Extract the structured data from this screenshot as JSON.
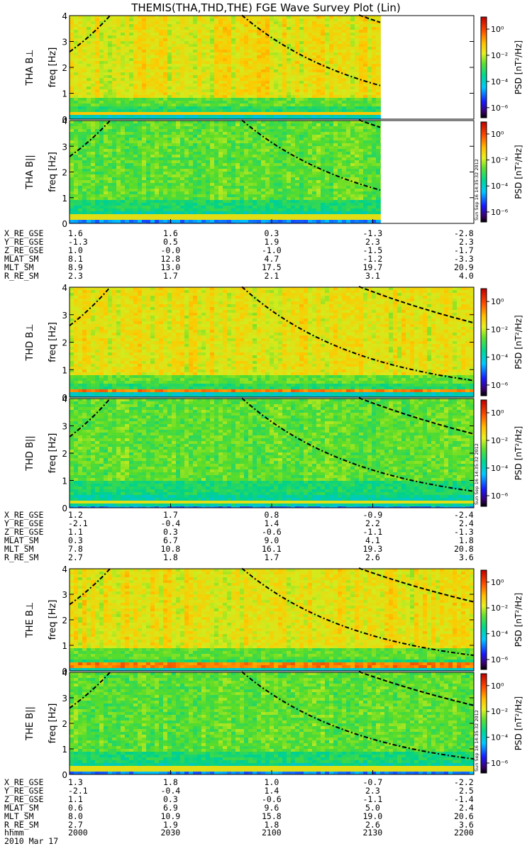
{
  "title": "THEMIS(THA,THD,THE) FGE Wave Survey Plot (Lin)",
  "colorbar": {
    "label": "PSD [nT²/Hz]",
    "ticks": [
      "10⁰",
      "10⁻²",
      "10⁻⁴",
      "10⁻⁶"
    ]
  },
  "timestamp_text": "Sun Sep 16 14:35:32 2012",
  "chart_data": {
    "type": "heatmap",
    "x_label": "hhmm",
    "x_ticks": [
      "2000",
      "2030",
      "2100",
      "2130",
      "2200"
    ],
    "x_range": [
      "2000",
      "2200"
    ],
    "date": "2010 Mar 17",
    "y_ticks": [
      "0",
      "1",
      "2",
      "3",
      "4"
    ],
    "y_range": [
      0,
      4
    ],
    "panels": [
      {
        "probe": "THA",
        "component": "B⊥",
        "ylabel": "THA B⊥",
        "unit_label": "freq [Hz]",
        "show_timestamp": false,
        "data_end_fraction": 0.77
      },
      {
        "probe": "THA",
        "component": "B||",
        "ylabel": "THA B||",
        "unit_label": "freq [Hz]",
        "show_timestamp": true,
        "data_end_fraction": 0.77
      },
      {
        "probe": "THD",
        "component": "B⊥",
        "ylabel": "THD B⊥",
        "unit_label": "freq [Hz]",
        "show_timestamp": false,
        "data_end_fraction": 1.0
      },
      {
        "probe": "THD",
        "component": "B||",
        "ylabel": "THD B||",
        "unit_label": "freq [Hz]",
        "show_timestamp": true,
        "data_end_fraction": 1.0
      },
      {
        "probe": "THE",
        "component": "B⊥",
        "ylabel": "THE B⊥",
        "unit_label": "freq [Hz]",
        "show_timestamp": false,
        "data_end_fraction": 1.0
      },
      {
        "probe": "THE",
        "component": "B||",
        "ylabel": "THE B||",
        "unit_label": "freq [Hz]",
        "show_timestamp": true,
        "data_end_fraction": 1.0
      }
    ],
    "ephemeris": [
      {
        "probe": "THA",
        "rows": [
          {
            "label": "X_RE_GSE",
            "values": [
              "1.6",
              "1.6",
              "0.3",
              "-1.3",
              "-2.8"
            ]
          },
          {
            "label": "Y_RE_GSE",
            "values": [
              "-1.3",
              "0.5",
              "1.9",
              "2.3",
              "2.3"
            ]
          },
          {
            "label": "Z_RE_GSE",
            "values": [
              "1.0",
              "-0.0",
              "-1.0",
              "-1.5",
              "-1.7"
            ]
          },
          {
            "label": "MLAT_SM",
            "values": [
              "8.1",
              "12.8",
              "4.7",
              "-1.2",
              "-3.3"
            ]
          },
          {
            "label": "MLT_SM",
            "values": [
              "8.9",
              "13.0",
              "17.5",
              "19.7",
              "20.9"
            ]
          },
          {
            "label": "R_RE_SM",
            "values": [
              "2.3",
              "1.7",
              "2.1",
              "3.1",
              "4.0"
            ]
          }
        ]
      },
      {
        "probe": "THD",
        "rows": [
          {
            "label": "X_RE_GSE",
            "values": [
              "1.2",
              "1.7",
              "0.8",
              "-0.9",
              "-2.4"
            ]
          },
          {
            "label": "Y_RE_GSE",
            "values": [
              "-2.1",
              "-0.4",
              "1.4",
              "2.2",
              "2.4"
            ]
          },
          {
            "label": "Z_RE_GSE",
            "values": [
              "1.1",
              "0.3",
              "-0.6",
              "-1.1",
              "-1.3"
            ]
          },
          {
            "label": "MLAT_SM",
            "values": [
              "0.3",
              "6.7",
              "9.0",
              "4.1",
              "1.8"
            ]
          },
          {
            "label": "MLT_SM",
            "values": [
              "7.8",
              "10.8",
              "16.1",
              "19.3",
              "20.8"
            ]
          },
          {
            "label": "R_RE_SM",
            "values": [
              "2.7",
              "1.8",
              "1.7",
              "2.6",
              "3.6"
            ]
          }
        ]
      },
      {
        "probe": "THE",
        "rows": [
          {
            "label": "X_RE_GSE",
            "values": [
              "1.3",
              "1.8",
              "1.0",
              "-0.7",
              "-2.2"
            ]
          },
          {
            "label": "Y_RE_GSE",
            "values": [
              "-2.1",
              "-0.4",
              "1.4",
              "2.3",
              "2.5"
            ]
          },
          {
            "label": "Z_RE_GSE",
            "values": [
              "1.1",
              "0.3",
              "-0.6",
              "-1.1",
              "-1.4"
            ]
          },
          {
            "label": "MLAT_SM",
            "values": [
              "0.6",
              "6.9",
              "9.6",
              "5.0",
              "2.4"
            ]
          },
          {
            "label": "MLT_SM",
            "values": [
              "8.0",
              "10.9",
              "15.8",
              "19.0",
              "20.6"
            ]
          },
          {
            "label": "R_RE_SM",
            "values": [
              "2.7",
              "1.9",
              "1.8",
              "2.6",
              "3.6"
            ]
          }
        ]
      }
    ]
  }
}
